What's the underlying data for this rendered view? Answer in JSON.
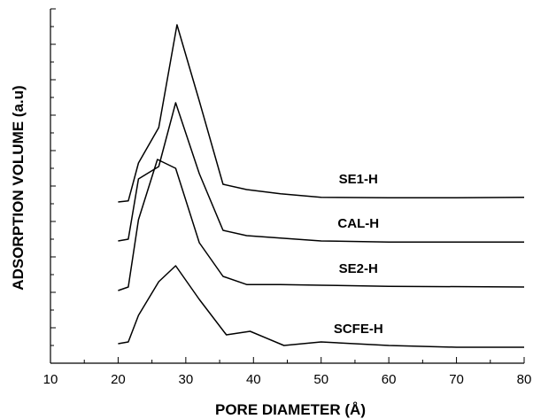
{
  "chart_data": {
    "type": "line",
    "xlabel": "PORE DIAMETER (Å)",
    "ylabel": "ADSORPTION VOLUME (a.u)",
    "xlim": [
      10,
      80
    ],
    "xticks": [
      "10",
      "20",
      "30",
      "40",
      "50",
      "60",
      "70",
      "80"
    ],
    "y_tick_labels": "none",
    "grid": false,
    "legend": "none",
    "color": "#000000",
    "series": [
      {
        "name": "SE1-H",
        "x": [
          20,
          21.5,
          23,
          26,
          28.7,
          32,
          35.5,
          39,
          44,
          50,
          60,
          70,
          80
        ],
        "y": [
          0.455,
          0.458,
          0.565,
          0.665,
          0.955,
          0.74,
          0.505,
          0.49,
          0.478,
          0.468,
          0.467,
          0.467,
          0.468
        ]
      },
      {
        "name": "CAL-H",
        "x": [
          20,
          21.5,
          23,
          26,
          28.5,
          32,
          35.5,
          39,
          44,
          50,
          60,
          80
        ],
        "y": [
          0.345,
          0.35,
          0.52,
          0.555,
          0.735,
          0.535,
          0.375,
          0.36,
          0.353,
          0.345,
          0.342,
          0.342
        ]
      },
      {
        "name": "SE2-H",
        "x": [
          20,
          21.5,
          23,
          25.8,
          28.5,
          32,
          35.5,
          39,
          44,
          50,
          60,
          80
        ],
        "y": [
          0.205,
          0.215,
          0.405,
          0.575,
          0.55,
          0.34,
          0.245,
          0.222,
          0.222,
          0.22,
          0.217,
          0.215
        ]
      },
      {
        "name": "SCFE-H",
        "x": [
          20,
          21.5,
          23,
          26,
          28.5,
          32,
          36,
          39.5,
          44.5,
          50,
          60,
          70,
          80
        ],
        "y": [
          0.055,
          0.06,
          0.135,
          0.23,
          0.275,
          0.18,
          0.08,
          0.09,
          0.05,
          0.06,
          0.05,
          0.045,
          0.045
        ]
      }
    ]
  }
}
